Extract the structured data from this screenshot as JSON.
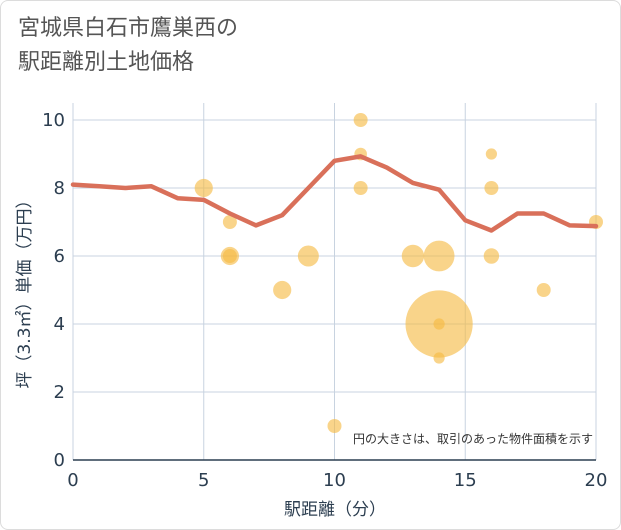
{
  "title": "宮城県白石市鷹巣西の\n駅距離別土地価格",
  "chart_data": {
    "type": "scatter",
    "title": "宮城県白石市鷹巣西の駅距離別土地価格",
    "xlabel": "駅距離（分）",
    "ylabel": "坪（3.3㎡）単価（万円）",
    "xlim": [
      0,
      20
    ],
    "ylim": [
      0,
      10.5
    ],
    "x_ticks": [
      0,
      5,
      10,
      15,
      20
    ],
    "y_ticks": [
      0,
      2,
      4,
      6,
      8,
      10
    ],
    "grid": true,
    "note": "円の大きさは、取引のあった物件面積を示す",
    "colors": {
      "points": "#f5b942",
      "line": "#d9705a",
      "grid": "#c8d3e0",
      "axis": "#2c3e50"
    },
    "series": [
      {
        "type": "scatter",
        "points": [
          {
            "x": 5,
            "y": 8,
            "size": 1.3
          },
          {
            "x": 6,
            "y": 7,
            "size": 1.0
          },
          {
            "x": 6,
            "y": 6,
            "size": 1.3
          },
          {
            "x": 6,
            "y": 6,
            "size": 1.0
          },
          {
            "x": 8,
            "y": 5,
            "size": 1.3
          },
          {
            "x": 9,
            "y": 6,
            "size": 1.5
          },
          {
            "x": 10,
            "y": 1,
            "size": 1.0
          },
          {
            "x": 11,
            "y": 10,
            "size": 1.0
          },
          {
            "x": 11,
            "y": 9,
            "size": 0.9
          },
          {
            "x": 11,
            "y": 8,
            "size": 1.0
          },
          {
            "x": 13,
            "y": 6,
            "size": 1.6
          },
          {
            "x": 14,
            "y": 6,
            "size": 2.2
          },
          {
            "x": 14,
            "y": 4,
            "size": 4.8
          },
          {
            "x": 14,
            "y": 4,
            "size": 0.8
          },
          {
            "x": 14,
            "y": 3,
            "size": 0.8
          },
          {
            "x": 16,
            "y": 9,
            "size": 0.8
          },
          {
            "x": 16,
            "y": 8,
            "size": 1.0
          },
          {
            "x": 16,
            "y": 6,
            "size": 1.1
          },
          {
            "x": 18,
            "y": 5,
            "size": 1.0
          },
          {
            "x": 20,
            "y": 7,
            "size": 1.0
          }
        ]
      },
      {
        "type": "line",
        "x": [
          0,
          1,
          2,
          3,
          4,
          5,
          6,
          7,
          8,
          9,
          10,
          11,
          12,
          13,
          14,
          15,
          16,
          17,
          18,
          19,
          20
        ],
        "y": [
          8.1,
          8.05,
          8.0,
          8.05,
          7.7,
          7.65,
          7.25,
          6.9,
          7.2,
          8.0,
          8.8,
          8.93,
          8.6,
          8.15,
          7.95,
          7.05,
          6.75,
          7.25,
          7.25,
          6.9,
          6.88
        ]
      }
    ]
  }
}
